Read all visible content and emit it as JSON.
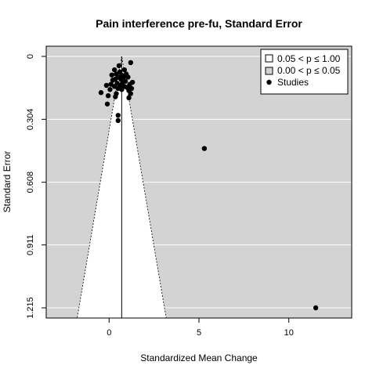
{
  "chart_data": {
    "type": "scatter",
    "title": "Pain interference pre-fu, Standard Error",
    "xlabel": "Standardized Mean Change",
    "ylabel": "Standard Error",
    "xlim": [
      -3.5,
      13.5
    ],
    "ylim": [
      1.215,
      0
    ],
    "x_ticks": [
      0,
      5,
      10
    ],
    "x_tick_labels": [
      "0",
      "5",
      "10"
    ],
    "y_ticks": [
      0,
      0.304,
      0.608,
      0.911,
      1.215
    ],
    "y_tick_labels": [
      "0",
      "0.304",
      "0.608",
      "0.911",
      "1.215"
    ],
    "y_reversed": true,
    "grid": true,
    "background_color": "#d3d3d3",
    "funnel": {
      "center": 0.7,
      "inner_region_label": "0.05 < p ≤ 1.00",
      "inner_region_color": "#ffffff",
      "outer_region_label": "0.00 < p ≤ 0.05",
      "outer_region_color": "#d3d3d3"
    },
    "legend": {
      "position": "top-right",
      "entries": [
        {
          "label": "0.05 < p ≤ 1.00",
          "symbol": "square",
          "fill": "#ffffff"
        },
        {
          "label": "0.00 < p ≤ 0.05",
          "symbol": "square",
          "fill": "#d3d3d3"
        },
        {
          "label": "Studies",
          "symbol": "circle",
          "fill": "#000000"
        }
      ]
    },
    "series": [
      {
        "name": "Studies",
        "points": [
          {
            "x": 0.55,
            "y": 0.045
          },
          {
            "x": 1.2,
            "y": 0.03
          },
          {
            "x": 0.85,
            "y": 0.065
          },
          {
            "x": 0.3,
            "y": 0.065
          },
          {
            "x": 0.6,
            "y": 0.075
          },
          {
            "x": 0.4,
            "y": 0.085
          },
          {
            "x": 0.7,
            "y": 0.09
          },
          {
            "x": 0.95,
            "y": 0.085
          },
          {
            "x": 0.15,
            "y": 0.09
          },
          {
            "x": 0.5,
            "y": 0.1
          },
          {
            "x": 0.8,
            "y": 0.1
          },
          {
            "x": 1.05,
            "y": 0.1
          },
          {
            "x": 0.35,
            "y": 0.11
          },
          {
            "x": 0.65,
            "y": 0.11
          },
          {
            "x": 0.2,
            "y": 0.115
          },
          {
            "x": 0.9,
            "y": 0.12
          },
          {
            "x": 0.75,
            "y": 0.125
          },
          {
            "x": 1.3,
            "y": 0.125
          },
          {
            "x": 0.45,
            "y": 0.13
          },
          {
            "x": 0.1,
            "y": 0.135
          },
          {
            "x": 1.15,
            "y": 0.135
          },
          {
            "x": 0.6,
            "y": 0.14
          },
          {
            "x": -0.15,
            "y": 0.14
          },
          {
            "x": 0.85,
            "y": 0.145
          },
          {
            "x": 0.3,
            "y": 0.145
          },
          {
            "x": 1.0,
            "y": 0.15
          },
          {
            "x": 0.5,
            "y": 0.155
          },
          {
            "x": 1.25,
            "y": 0.155
          },
          {
            "x": 0.05,
            "y": 0.16
          },
          {
            "x": 0.7,
            "y": 0.16
          },
          {
            "x": 1.1,
            "y": 0.165
          },
          {
            "x": -0.45,
            "y": 0.175
          },
          {
            "x": 0.4,
            "y": 0.18
          },
          {
            "x": 1.2,
            "y": 0.18
          },
          {
            "x": -0.05,
            "y": 0.19
          },
          {
            "x": 0.35,
            "y": 0.195
          },
          {
            "x": 1.1,
            "y": 0.2
          },
          {
            "x": -0.1,
            "y": 0.23
          },
          {
            "x": 0.5,
            "y": 0.285
          },
          {
            "x": 0.5,
            "y": 0.31
          },
          {
            "x": 5.3,
            "y": 0.445
          },
          {
            "x": 11.5,
            "y": 1.215
          }
        ]
      }
    ]
  }
}
